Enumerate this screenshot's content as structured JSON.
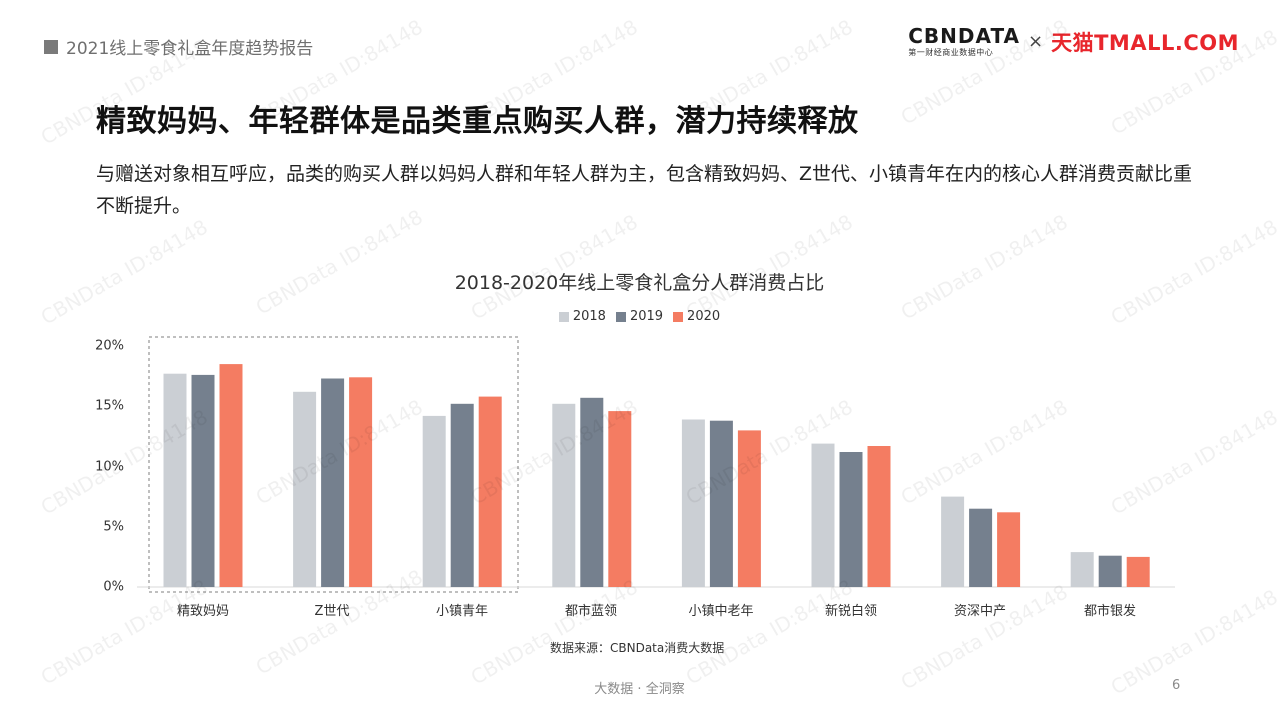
{
  "header": {
    "section_title": "2021线上零食礼盒年度趋势报告",
    "brand_cbn": "CBNDATA",
    "brand_cbn_sub": "第一财经商业数据中心",
    "brand_cross": "×",
    "brand_tmall": "天猫TMALL.COM"
  },
  "main": {
    "title": "精致妈妈、年轻群体是品类重点购买人群，潜力持续释放",
    "subtitle": "与赠送对象相互呼应，品类的购买人群以妈妈人群和年轻人群为主，包含精致妈妈、Z世代、小镇青年在内的核心人群消费贡献比重不断提升。"
  },
  "chart_data": {
    "type": "bar",
    "title": "2018-2020年线上零食礼盒分人群消费占比",
    "categories": [
      "精致妈妈",
      "Z世代",
      "小镇青年",
      "都市蓝领",
      "小镇中老年",
      "新锐白领",
      "资深中产",
      "都市银发"
    ],
    "series": [
      {
        "name": "2018",
        "color": "#cbcfd4",
        "values": [
          17.7,
          16.2,
          14.2,
          15.2,
          13.9,
          11.9,
          7.5,
          2.9
        ]
      },
      {
        "name": "2019",
        "color": "#75808e",
        "values": [
          17.6,
          17.3,
          15.2,
          15.7,
          13.8,
          11.2,
          6.5,
          2.6
        ]
      },
      {
        "name": "2020",
        "color": "#f47c62",
        "values": [
          18.5,
          17.4,
          15.8,
          14.6,
          13.0,
          11.7,
          6.2,
          2.5
        ]
      }
    ],
    "yticks": [
      "0%",
      "5%",
      "10%",
      "15%",
      "20%"
    ],
    "ylim": [
      0,
      20
    ],
    "highlighted_categories": [
      "精致妈妈",
      "Z世代",
      "小镇青年"
    ],
    "legend_placement": "top-center",
    "grid": false
  },
  "source_note": "数据来源：CBNData消费大数据",
  "footer": {
    "tagline": "大数据 · 全洞察",
    "page_number": "6"
  },
  "watermark": "CBNData ID:84148"
}
